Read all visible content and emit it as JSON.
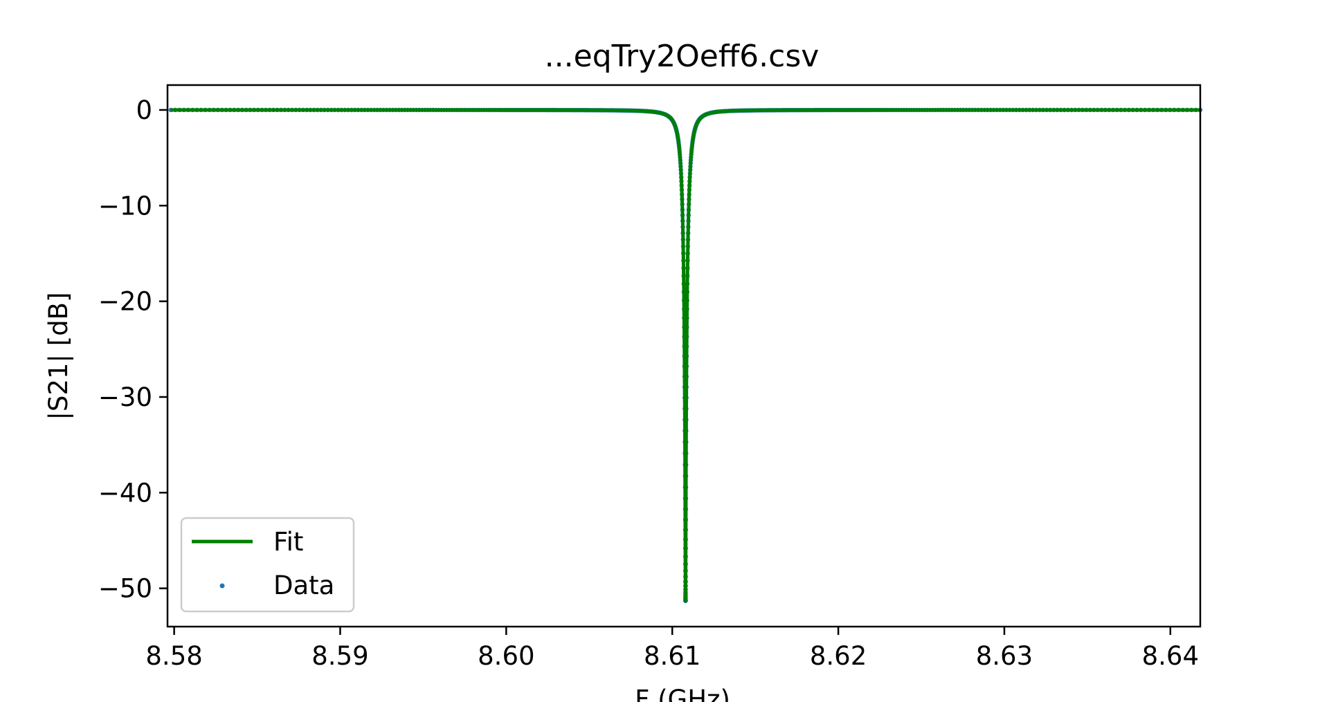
{
  "chart_data": {
    "type": "line",
    "title": "...eqTry2Oeff6.csv",
    "xlabel": "F (GHz)",
    "ylabel": "|S21| [dB]",
    "xlim": [
      8.5796,
      8.6418
    ],
    "ylim": [
      -54.0,
      2.6
    ],
    "xticks": [
      8.58,
      8.59,
      8.6,
      8.61,
      8.62,
      8.63,
      8.64
    ],
    "xtick_labels": [
      "8.58",
      "8.59",
      "8.60",
      "8.61",
      "8.62",
      "8.63",
      "8.64"
    ],
    "yticks": [
      0,
      -10,
      -20,
      -30,
      -40,
      -50
    ],
    "ytick_labels": [
      "0",
      "−10",
      "−20",
      "−30",
      "−40",
      "−50"
    ],
    "grid": false,
    "legend_position": "lower-left",
    "resonance": {
      "f0": 8.6108,
      "min_db": -51.3,
      "half_width_ghz": 0.00029
    },
    "series": [
      {
        "name": "Fit",
        "kind": "line",
        "color": "#007f00"
      },
      {
        "name": "Data",
        "kind": "scatter",
        "color": "#1f77b4"
      }
    ]
  }
}
